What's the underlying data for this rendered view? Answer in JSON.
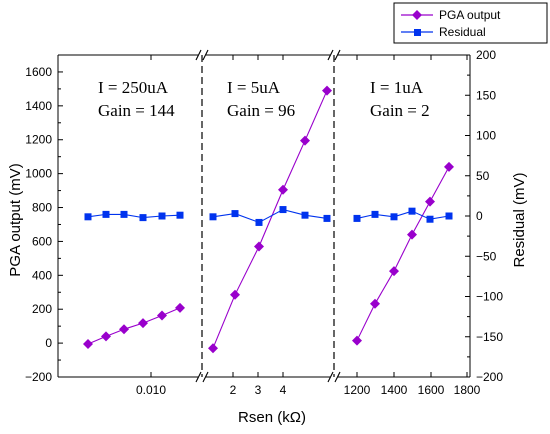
{
  "chart_data": {
    "type": "line",
    "xlabel": "Rsen (kΩ)",
    "ylabel_left": "PGA output (mV)",
    "ylabel_right": "Residual (mV)",
    "ylim_left": [
      -200,
      1700
    ],
    "ylim_right": [
      -200,
      200
    ],
    "yticks_left": [
      "−200",
      "0",
      "200",
      "400",
      "600",
      "800",
      "1000",
      "1200",
      "1400",
      "1600"
    ],
    "yticks_right": [
      "−200",
      "−150",
      "−100",
      "−50",
      "0",
      "50",
      "100",
      "150",
      "200"
    ],
    "legend": {
      "placement": "top-right",
      "entries": [
        {
          "name": "PGA output",
          "color": "#9900cc",
          "marker": "diamond"
        },
        {
          "name": "Residual",
          "color": "#0033ee",
          "marker": "square"
        }
      ]
    },
    "axis_break": "//",
    "segments": [
      {
        "annotation": [
          "I = 250uA",
          "Gain = 144"
        ],
        "xticks": [
          "0.010"
        ],
        "pga_output": [
          -5,
          40,
          82,
          118,
          163,
          208
        ],
        "residual": [
          -1,
          2,
          2,
          -2,
          0,
          1
        ]
      },
      {
        "annotation": [
          "I = 5uA",
          "Gain = 96"
        ],
        "xticks": [
          "2",
          "3",
          "4"
        ],
        "pga_output": [
          -30,
          285,
          570,
          905,
          1195,
          1490
        ],
        "residual": [
          -1,
          3,
          -8,
          8,
          1,
          -3
        ]
      },
      {
        "annotation": [
          "I = 1uA",
          "Gain = 2"
        ],
        "xticks": [
          "1200",
          "1400",
          "1600",
          "1800"
        ],
        "pga_output": [
          15,
          232,
          425,
          640,
          835,
          1040
        ],
        "residual": [
          -3,
          2,
          -1,
          6,
          -4,
          0
        ]
      }
    ]
  }
}
